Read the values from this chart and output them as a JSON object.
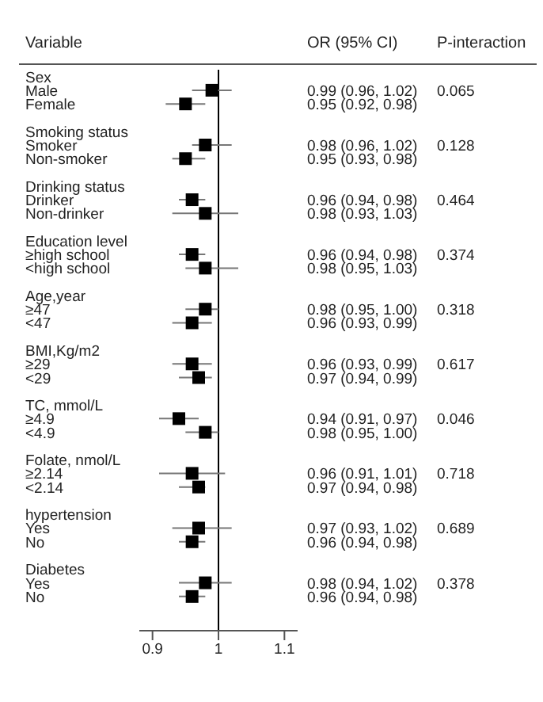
{
  "chart_data": {
    "type": "scatter",
    "orientation": "horizontal",
    "ylabel": "Variable",
    "annotations": [
      "OR (95% CI)",
      "P-interaction",
      "0.065",
      "0.128",
      "0.464",
      "0.374",
      "0.318",
      "0.617",
      "0.046",
      "0.718",
      "0.689",
      "0.378"
    ],
    "categories": [
      "Sex",
      "Male",
      "Female",
      null,
      "Smoking status",
      "Smoker",
      "Non-smoker",
      null,
      "Drinking status",
      "Drinker",
      "Non-drinker",
      null,
      "Education level",
      "≥high school",
      "<high school",
      null,
      "Age,year",
      "≥47",
      "<47",
      null,
      "BMI,Kg/m2",
      "≥29",
      "<29",
      null,
      "TC, mmol/L",
      "≥4.9",
      "<4.9",
      null,
      "Folate, nmol/L",
      "≥2.14",
      "<2.14",
      null,
      "hypertension",
      "Yes",
      "No",
      null,
      "Diabetes",
      "Yes",
      "No"
    ],
    "values": [
      null,
      0.99,
      0.95,
      null,
      null,
      0.98,
      0.95,
      null,
      null,
      0.96,
      0.98,
      null,
      null,
      0.96,
      0.98,
      null,
      null,
      0.98,
      0.96,
      null,
      null,
      0.96,
      0.97,
      null,
      null,
      0.94,
      0.98,
      null,
      null,
      0.96,
      0.97,
      null,
      null,
      0.97,
      0.96,
      null,
      null,
      0.98,
      0.96
    ],
    "errors": [
      null,
      [
        0.96,
        1.02
      ],
      [
        0.92,
        0.98
      ],
      null,
      null,
      [
        0.96,
        1.02
      ],
      [
        0.93,
        0.98
      ],
      null,
      null,
      [
        0.94,
        0.98
      ],
      [
        0.93,
        1.03
      ],
      null,
      null,
      [
        0.94,
        0.98
      ],
      [
        0.95,
        1.03
      ],
      null,
      null,
      [
        0.95,
        1.0
      ],
      [
        0.93,
        0.99
      ],
      null,
      null,
      [
        0.93,
        0.99
      ],
      [
        0.94,
        0.99
      ],
      null,
      null,
      [
        0.91,
        0.97
      ],
      [
        0.95,
        1.0
      ],
      null,
      null,
      [
        0.91,
        1.01
      ],
      [
        0.94,
        0.98
      ],
      null,
      null,
      [
        0.93,
        1.02
      ],
      [
        0.94,
        0.98
      ],
      null,
      null,
      [
        0.94,
        1.02
      ],
      [
        0.94,
        0.98
      ]
    ],
    "value_labels": [
      null,
      "0.99 (0.96, 1.02)",
      "0.95 (0.92, 0.98)",
      null,
      null,
      "0.98 (0.96, 1.02)",
      "0.95 (0.93, 0.98)",
      null,
      null,
      "0.96 (0.94, 0.98)",
      "0.98 (0.93, 1.03)",
      null,
      null,
      "0.96 (0.94, 0.98)",
      "0.98 (0.95, 1.03)",
      null,
      null,
      "0.98 (0.95, 1.00)",
      "0.96 (0.93, 0.99)",
      null,
      null,
      "0.96 (0.93, 0.99)",
      "0.97 (0.94, 0.99)",
      null,
      null,
      "0.94 (0.91, 0.97)",
      "0.98 (0.95, 1.00)",
      null,
      null,
      "0.96 (0.91, 1.01)",
      "0.97 (0.94, 0.98)",
      null,
      null,
      "0.97 (0.93, 1.02)",
      "0.96 (0.94, 0.98)",
      null,
      null,
      "0.98 (0.94, 1.02)",
      "0.96 (0.94, 0.98)"
    ],
    "color": "#000000",
    "marker": "square",
    "xlim": [
      0.88,
      1.12
    ],
    "xticks": [
      0.9,
      1,
      1.1
    ],
    "ref_lines": [
      {
        "axis": "x",
        "value": 1,
        "label": null,
        "color": "#000000"
      }
    ],
    "grid": false
  }
}
